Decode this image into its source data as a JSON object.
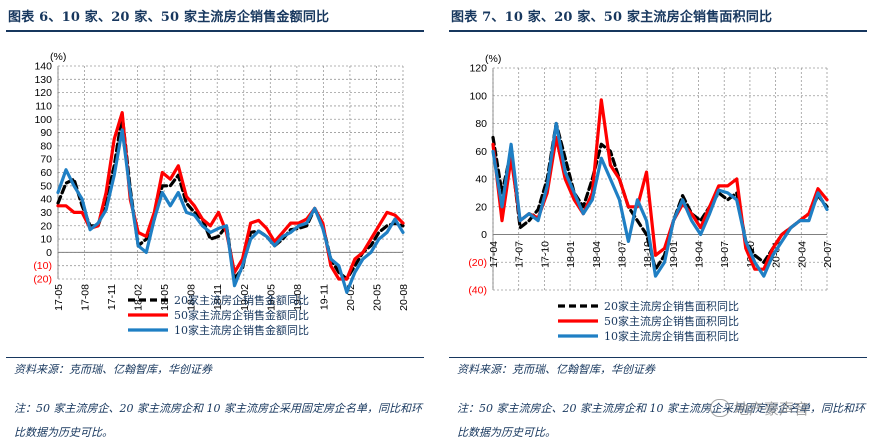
{
  "panels": {
    "left": {
      "title": "图表 6、10 家、20 家、50 家主流房企销售金额同比",
      "source": "资料来源：克而瑞、亿翰智库，华创证券",
      "note": "注：50 家主流房企、20 家主流房企和 10 家主流房企采用固定房企名单，同比和环比数据为历史可比。"
    },
    "right": {
      "title": "图表 7、10 家、20 家、50 家主流房企销售面积同比",
      "source": "资料来源：克而瑞、亿翰智库，华创证券",
      "note": "注：50 家主流房企、20 家主流房企和 10 家主流房企采用固定房企名单，同比和环比数据为历史可比。"
    }
  },
  "watermark": "地产豪声音",
  "chart_data": [
    {
      "type": "line",
      "title": "图表 6、10 家、20 家、50 家主流房企销售金额同比",
      "unit_label": "(%)",
      "ylim": [
        -20,
        140
      ],
      "yticks": [
        140,
        130,
        120,
        110,
        100,
        90,
        80,
        70,
        60,
        50,
        40,
        30,
        20,
        10,
        0,
        -10,
        -20
      ],
      "ytick_labels": [
        "140",
        "130",
        "120",
        "110",
        "100",
        "90",
        "80",
        "70",
        "60",
        "50",
        "40",
        "30",
        "20",
        "10",
        "0",
        "(10)",
        "(20)"
      ],
      "xtick_labels": [
        "17-05",
        "17-08",
        "17-11",
        "18-02",
        "18-05",
        "18-08",
        "18-11",
        "19-02",
        "19-05",
        "19-08",
        "19-11",
        "20-02",
        "20-05",
        "20-08"
      ],
      "grid": true,
      "legend_position": "bottom",
      "series": [
        {
          "name": "20家主流房企销售金额同比",
          "color": "#000000",
          "style": "dashed",
          "values": [
            37,
            52,
            55,
            35,
            20,
            20,
            38,
            65,
            103,
            48,
            5,
            10,
            25,
            50,
            50,
            58,
            37,
            30,
            25,
            10,
            12,
            20,
            -20,
            -12,
            15,
            16,
            12,
            5,
            10,
            17,
            18,
            20,
            33,
            20,
            -5,
            -15,
            -20,
            -10,
            0,
            5,
            15,
            20,
            22,
            20
          ]
        },
        {
          "name": "50家主流房企销售金额同比",
          "color": "#ff0000",
          "style": "solid",
          "values": [
            35,
            35,
            30,
            30,
            18,
            20,
            45,
            85,
            105,
            40,
            15,
            12,
            30,
            60,
            55,
            65,
            42,
            35,
            25,
            20,
            30,
            15,
            -15,
            -5,
            22,
            24,
            18,
            8,
            15,
            22,
            22,
            25,
            33,
            22,
            -10,
            -20,
            -20,
            -5,
            0,
            10,
            20,
            30,
            28,
            22
          ]
        },
        {
          "name": "10家主流房企销售金额同比",
          "color": "#1f7fc4",
          "style": "solid",
          "values": [
            45,
            62,
            50,
            40,
            17,
            22,
            32,
            58,
            92,
            45,
            5,
            0,
            25,
            45,
            35,
            45,
            30,
            28,
            20,
            15,
            18,
            20,
            -25,
            -10,
            10,
            16,
            12,
            5,
            12,
            15,
            20,
            22,
            33,
            18,
            -5,
            -10,
            -30,
            -15,
            -5,
            0,
            10,
            15,
            25,
            15
          ]
        }
      ]
    },
    {
      "type": "line",
      "title": "图表 7、10 家、20 家、50 家主流房企销售面积同比",
      "unit_label": "(%)",
      "ylim": [
        -40,
        120
      ],
      "yticks": [
        120,
        100,
        80,
        60,
        40,
        20,
        0,
        -20,
        -40
      ],
      "ytick_labels": [
        "120",
        "100",
        "80",
        "60",
        "40",
        "20",
        "0",
        "(20)",
        "(40)"
      ],
      "xtick_labels": [
        "17-04",
        "17-07",
        "17-10",
        "18-01",
        "18-04",
        "18-07",
        "18-10",
        "19-01",
        "19-04",
        "19-07",
        "19-10",
        "20-01",
        "20-04",
        "20-07"
      ],
      "grid": true,
      "legend_position": "bottom",
      "series": [
        {
          "name": "20家主流房企销售面积同比",
          "color": "#000000",
          "style": "dashed",
          "values": [
            70,
            30,
            60,
            5,
            10,
            18,
            40,
            80,
            55,
            30,
            20,
            40,
            65,
            60,
            40,
            20,
            10,
            0,
            -25,
            -15,
            10,
            28,
            15,
            10,
            20,
            30,
            25,
            30,
            -5,
            -15,
            -20,
            -10,
            0,
            5,
            10,
            15,
            28,
            20
          ]
        },
        {
          "name": "50家主流房企销售面积同比",
          "color": "#ff0000",
          "style": "solid",
          "values": [
            65,
            10,
            55,
            10,
            15,
            12,
            30,
            70,
            40,
            25,
            15,
            30,
            97,
            50,
            40,
            20,
            20,
            45,
            -15,
            -10,
            10,
            22,
            15,
            5,
            20,
            35,
            35,
            40,
            -10,
            -25,
            -25,
            -10,
            0,
            5,
            10,
            15,
            33,
            25
          ]
        },
        {
          "name": "10家主流房企销售面积同比",
          "color": "#1f7fc4",
          "style": "solid",
          "values": [
            60,
            20,
            65,
            10,
            15,
            10,
            35,
            80,
            45,
            30,
            15,
            25,
            55,
            40,
            25,
            -5,
            25,
            10,
            -30,
            -20,
            10,
            25,
            10,
            0,
            15,
            32,
            30,
            25,
            -5,
            -20,
            -30,
            -15,
            -5,
            5,
            10,
            10,
            30,
            18
          ]
        }
      ]
    }
  ]
}
